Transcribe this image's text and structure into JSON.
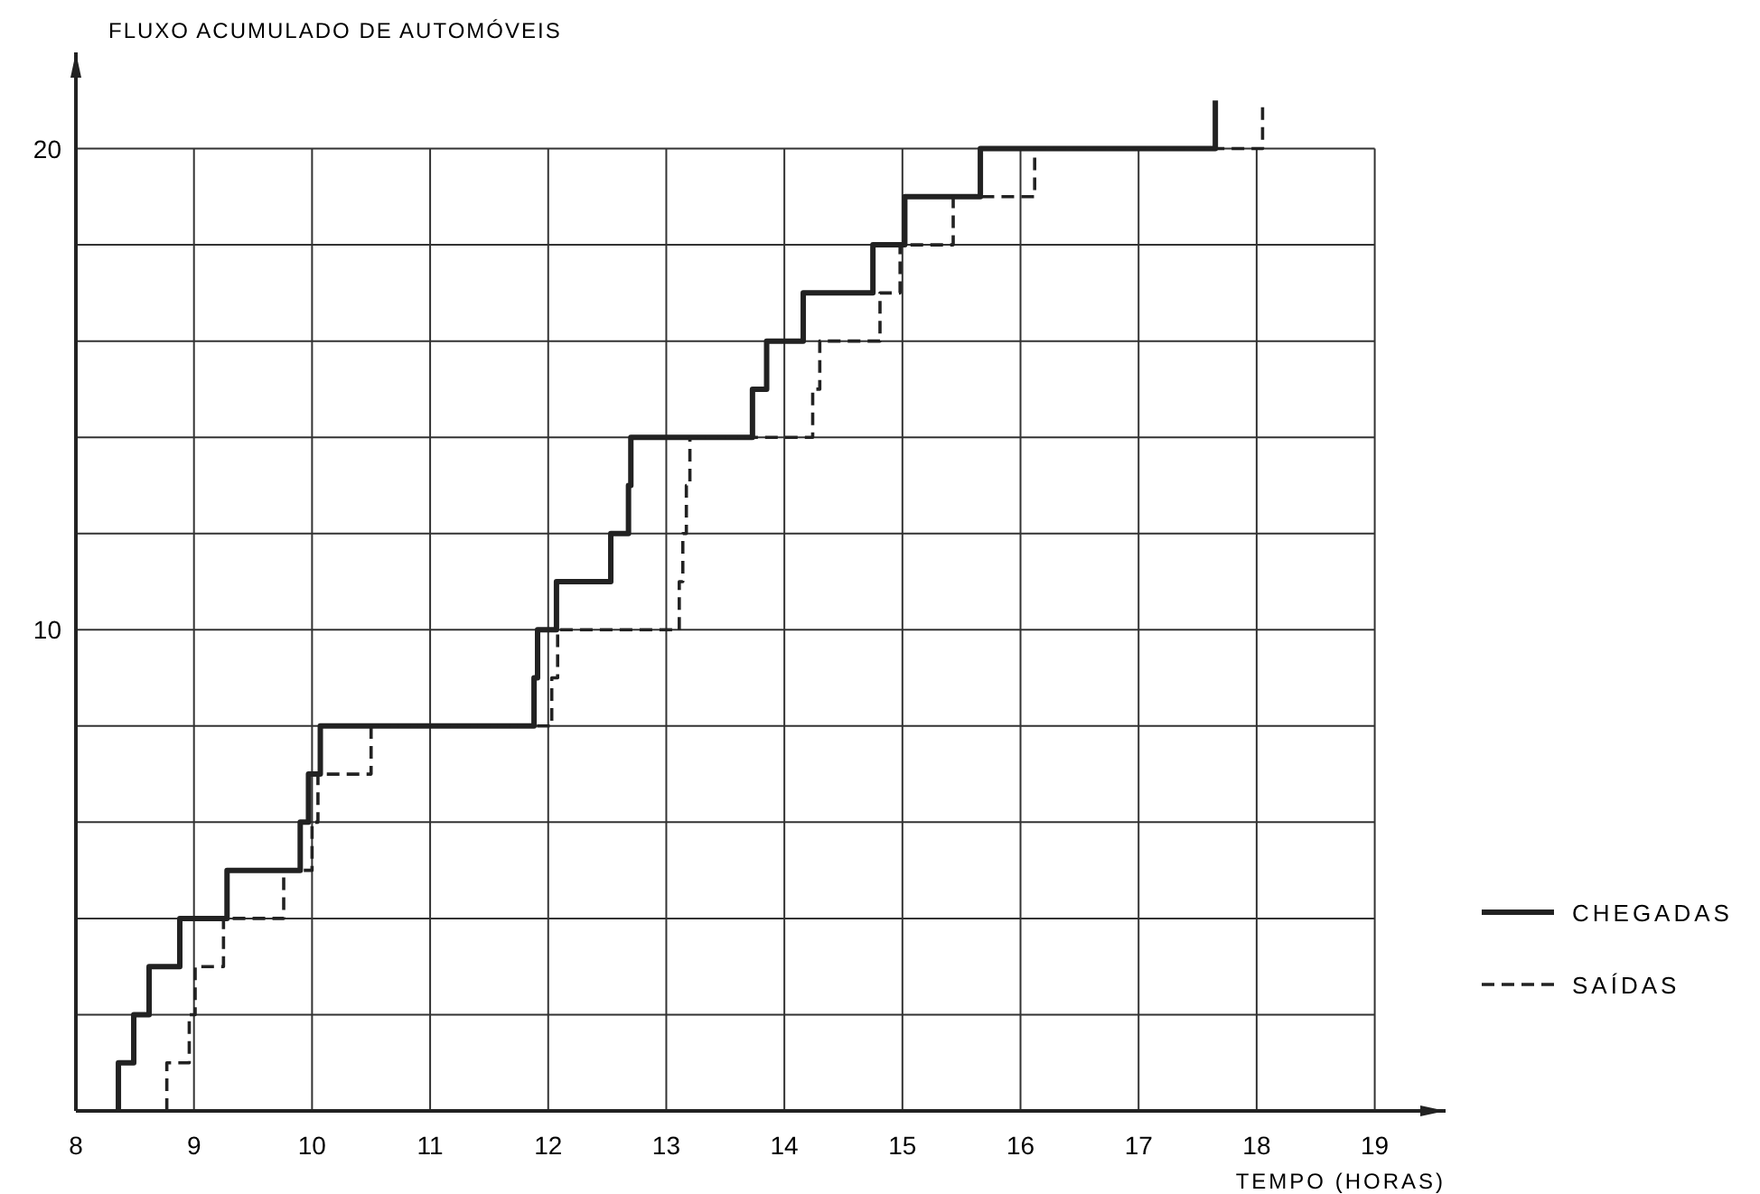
{
  "chart_data": {
    "type": "step",
    "ylabel": "FLUXO ACUMULADO DE AUTOMÓVEIS",
    "xlabel": "TEMPO (HORAS)",
    "xlim": [
      8,
      19.6
    ],
    "xticks": [
      8,
      9,
      10,
      11,
      12,
      13,
      14,
      15,
      16,
      17,
      18,
      19
    ],
    "ylim": [
      0,
      22
    ],
    "yticks": [
      {
        "value": 2,
        "label": null
      },
      {
        "value": 4,
        "label": null
      },
      {
        "value": 6,
        "label": null
      },
      {
        "value": 8,
        "label": null
      },
      10,
      {
        "value": 12,
        "label": null
      },
      {
        "value": 14,
        "label": null
      },
      {
        "value": 16,
        "label": null
      },
      {
        "value": 18,
        "label": null
      },
      20
    ],
    "grid": true,
    "legend": "right",
    "series": [
      {
        "name": "CHEGADAS",
        "color": "#222222",
        "line_style": "solid",
        "x": [
          8.36,
          8.36,
          8.49,
          8.62,
          8.88,
          9.28,
          9.9,
          9.97,
          10.07,
          11.88,
          11.91,
          12.07,
          12.53,
          12.68,
          12.7,
          13.73,
          13.85,
          14.16,
          14.75,
          15.02,
          15.66,
          17.65
        ],
        "values": [
          0,
          1,
          2,
          3,
          4,
          5,
          6,
          7,
          8,
          9,
          10,
          11,
          12,
          13,
          14,
          15,
          16,
          17,
          18,
          19,
          20,
          21
        ]
      },
      {
        "name": "SAÍDAS",
        "color": "#222222",
        "line_style": "dashed",
        "x": [
          8.77,
          8.77,
          8.96,
          9.01,
          9.25,
          9.76,
          10.0,
          10.05,
          10.5,
          12.03,
          12.08,
          13.11,
          13.14,
          13.17,
          13.2,
          14.24,
          14.3,
          14.81,
          14.98,
          15.43,
          16.12,
          18.05
        ],
        "values": [
          0,
          1,
          2,
          3,
          4,
          5,
          6,
          7,
          8,
          9,
          10,
          11,
          12,
          13,
          14,
          15,
          16,
          17,
          18,
          19,
          20,
          21
        ]
      }
    ]
  }
}
